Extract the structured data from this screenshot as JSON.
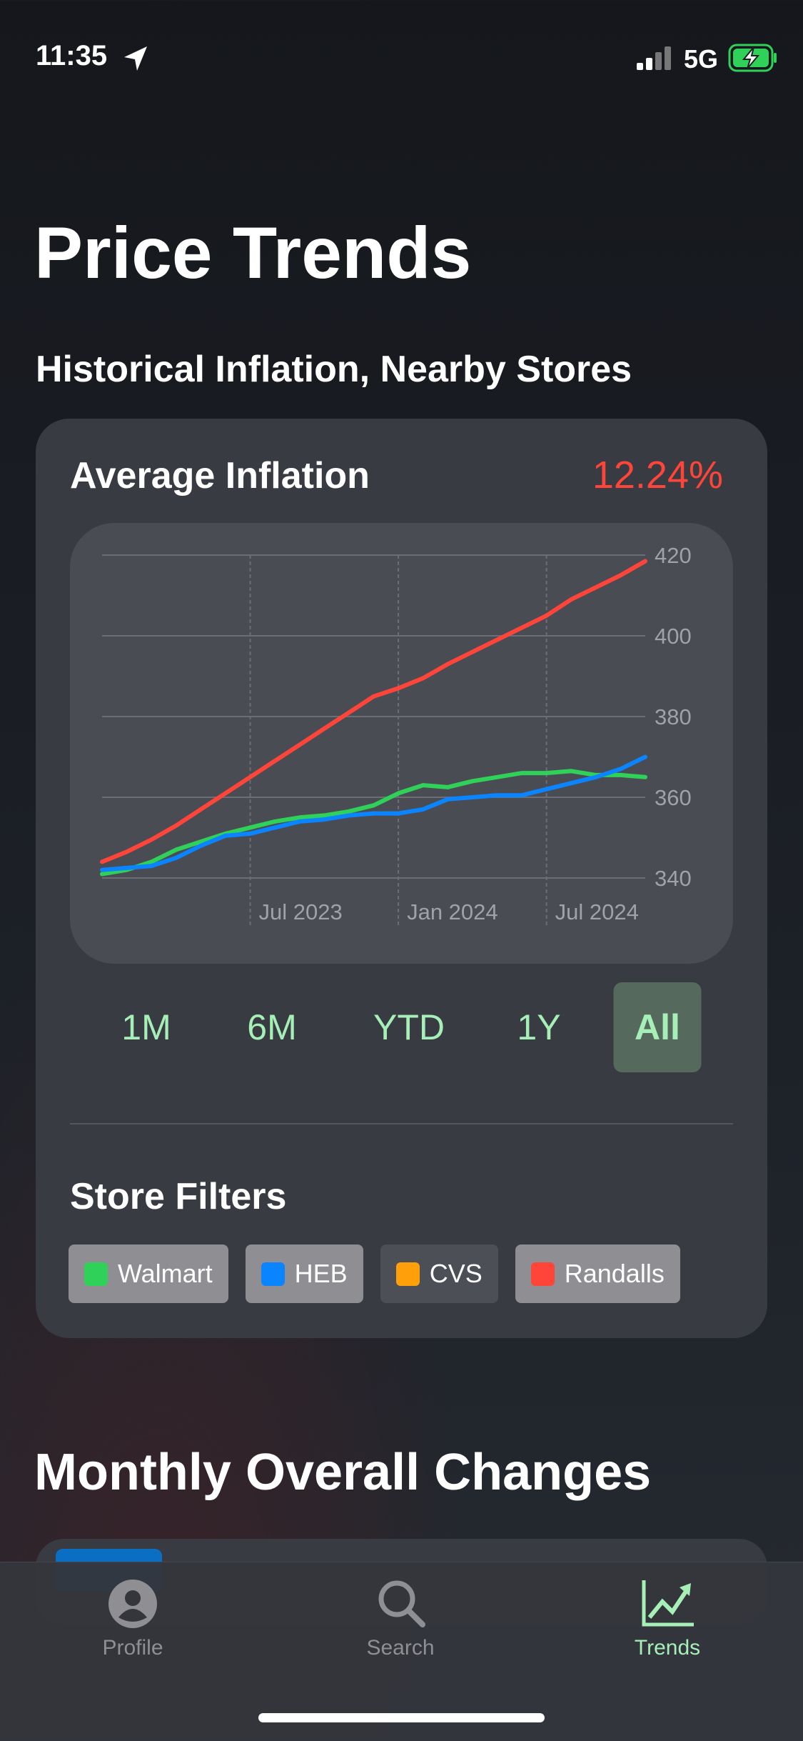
{
  "status_bar": {
    "time": "11:35",
    "network": "5G"
  },
  "title": "Price Trends",
  "subtitle": "Historical Inflation, Nearby Stores",
  "card": {
    "title": "Average Inflation",
    "value": "12.24%"
  },
  "chart_data": {
    "type": "line",
    "x": [
      "2023-01",
      "2023-02",
      "2023-03",
      "2023-04",
      "2023-05",
      "2023-06",
      "2023-07",
      "2023-08",
      "2023-09",
      "2023-10",
      "2023-11",
      "2023-12",
      "2024-01",
      "2024-02",
      "2024-03",
      "2024-04",
      "2024-05",
      "2024-06",
      "2024-07",
      "2024-08",
      "2024-09",
      "2024-10",
      "2024-11"
    ],
    "series": [
      {
        "name": "Walmart",
        "color": "#30d158",
        "values": [
          341,
          342,
          344,
          347,
          349,
          351,
          352.5,
          354,
          355,
          355.5,
          356.5,
          358,
          361,
          363,
          362.5,
          364,
          365,
          366,
          366,
          366.5,
          365.5,
          365.5,
          365
        ]
      },
      {
        "name": "HEB",
        "color": "#0a84ff",
        "values": [
          342,
          342.5,
          343,
          345,
          348,
          350.5,
          351,
          352.5,
          354,
          354.5,
          355.5,
          356,
          356,
          357,
          359.5,
          360,
          360.5,
          360.5,
          362,
          363.5,
          365,
          367,
          370
        ]
      },
      {
        "name": "Randalls",
        "color": "#ff453a",
        "values": [
          344,
          346.5,
          349.5,
          353,
          357,
          361,
          365,
          369,
          373,
          377,
          381,
          385,
          387,
          389.5,
          393,
          396,
          399,
          402,
          405,
          409,
          412,
          415,
          418.5
        ]
      }
    ],
    "ylim": [
      340,
      420
    ],
    "yticks": [
      340,
      360,
      380,
      400,
      420
    ],
    "xticks": [
      {
        "value": "2023-07",
        "label": "Jul 2023"
      },
      {
        "value": "2024-01",
        "label": "Jan 2024"
      },
      {
        "value": "2024-07",
        "label": "Jul 2024"
      }
    ],
    "grid": true
  },
  "ranges": {
    "options": [
      "1M",
      "6M",
      "YTD",
      "1Y",
      "All"
    ],
    "selected": "All"
  },
  "filters": {
    "title": "Store Filters",
    "items": [
      {
        "name": "Walmart",
        "color": "#30d158",
        "active": true
      },
      {
        "name": "HEB",
        "color": "#0a84ff",
        "active": true
      },
      {
        "name": "CVS",
        "color": "#ff9f0a",
        "active": false
      },
      {
        "name": "Randalls",
        "color": "#ff453a",
        "active": true
      }
    ]
  },
  "section_title": "Monthly Overall Changes",
  "tabs": {
    "items": [
      "Profile",
      "Search",
      "Trends"
    ],
    "selected": "Trends"
  }
}
